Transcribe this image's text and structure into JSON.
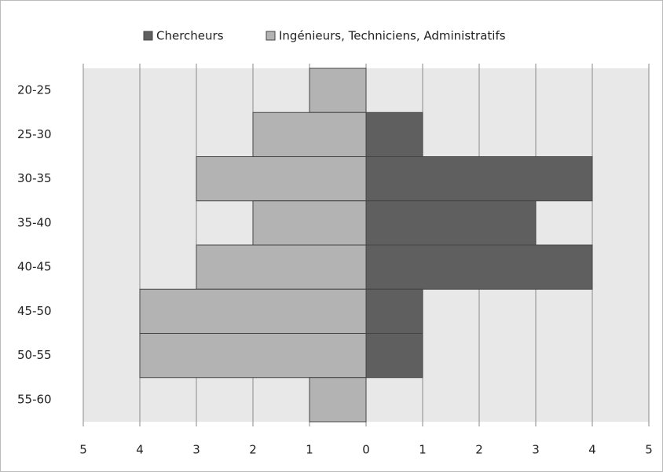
{
  "chart_data": {
    "type": "bar",
    "orientation": "horizontal",
    "stacked": false,
    "categories": [
      "20-25",
      "25-30",
      "30-35",
      "35-40",
      "40-45",
      "45-50",
      "50-55",
      "55-60"
    ],
    "series": [
      {
        "name": "Chercheurs",
        "color": "#5f5f5f",
        "values": [
          0,
          1,
          4,
          3,
          4,
          1,
          1,
          0
        ]
      },
      {
        "name": "Ingénieurs, Techniciens, Administratifs",
        "color": "#b3b3b3",
        "values": [
          -1,
          -2,
          -3,
          -2,
          -3,
          -4,
          -4,
          -1
        ]
      }
    ],
    "xlim": [
      -5,
      5
    ],
    "xticks": [
      {
        "value": -5,
        "label": "5"
      },
      {
        "value": -4,
        "label": "4"
      },
      {
        "value": -3,
        "label": "3"
      },
      {
        "value": -2,
        "label": "2"
      },
      {
        "value": -1,
        "label": "1"
      },
      0,
      1,
      2,
      3,
      4,
      5
    ],
    "grid": true,
    "legend": "top"
  }
}
